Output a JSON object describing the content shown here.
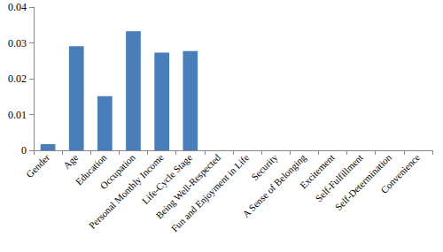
{
  "chart_data": {
    "type": "bar",
    "categories": [
      "Gender",
      "Age",
      "Education",
      "Occupation",
      "Personal Monthly Income",
      "Life-Cycle Stage",
      "Being Well-Respected",
      "Fun and Enjoyment in Life",
      "Security",
      "A Sense of Belonging",
      "Excitement",
      "Self-Fulfillment",
      "Self-Determination",
      "Convenience"
    ],
    "values": [
      0.0017,
      0.0291,
      0.0151,
      0.0333,
      0.0273,
      0.0277,
      0,
      0,
      0,
      0,
      0,
      0,
      0,
      0
    ],
    "color": "#4a7ebb",
    "ylim": [
      0,
      0.04
    ],
    "yticks": [
      0,
      0.01,
      0.02,
      0.03,
      0.04
    ],
    "grid": false
  }
}
